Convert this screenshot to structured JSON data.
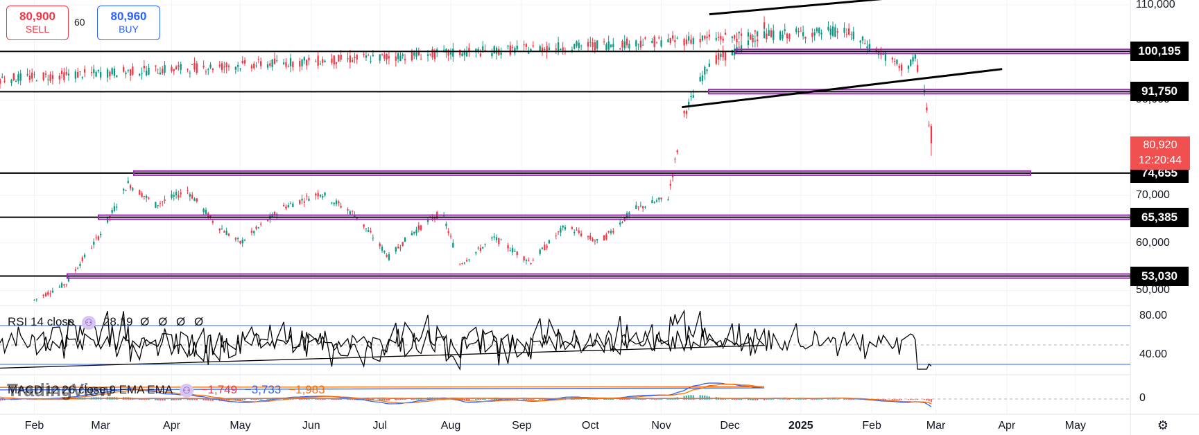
{
  "trade": {
    "sell_price": "80,900",
    "sell_label": "SELL",
    "qty": "60",
    "buy_price": "80,960",
    "buy_label": "BUY"
  },
  "price_axis_ticks": [
    {
      "label": "110,000",
      "value": 110000
    },
    {
      "label": "90,000",
      "value": 90000
    },
    {
      "label": "70,000",
      "value": 70000
    },
    {
      "label": "60,000",
      "value": 60000
    },
    {
      "label": "50,000",
      "value": 50000
    }
  ],
  "level_labels": [
    {
      "label": "100,195",
      "value": 100195
    },
    {
      "label": "91,750",
      "value": 91750
    },
    {
      "label": "74,655",
      "value": 74655
    },
    {
      "label": "65,385",
      "value": 65385
    },
    {
      "label": "53,030",
      "value": 53030
    }
  ],
  "current_price": {
    "price": "80,920",
    "countdown": "12:20:44",
    "color": "#f0504f"
  },
  "rsi": {
    "label": "RSI 14 close",
    "value": "28.19",
    "extras": "Ø Ø Ø Ø",
    "ticks": [
      {
        "label": "80.00",
        "value": 80
      },
      {
        "label": "40.00",
        "value": 40
      }
    ],
    "bands": [
      70,
      30
    ]
  },
  "macd": {
    "label": "MACD 12 26 close 9 EMA EMA",
    "v1": "−1,749",
    "v2": "−3,733",
    "v3": "−1,983",
    "tick": "0"
  },
  "months": [
    "Feb",
    "Mar",
    "Apr",
    "May",
    "Jun",
    "Jul",
    "Aug",
    "Sep",
    "Oct",
    "Nov",
    "Dec",
    "2025",
    "Feb",
    "Mar",
    "Apr",
    "May"
  ],
  "watermark": "TradingView",
  "colors": {
    "up": "#089981",
    "down": "#f23645",
    "level": "#9c27b0",
    "sell": "#f23645",
    "buy": "#2962ff",
    "macd": "#2962ff",
    "signal": "#ff6d00"
  },
  "chart_data": {
    "type": "candlestick",
    "ylim": [
      47000,
      111000
    ],
    "horizontal_levels": [
      100195,
      91750,
      74655,
      65385,
      53030
    ],
    "trend_channel": [
      {
        "from": [
          "Nov 22",
          108000
        ],
        "to": [
          "Feb 24",
          112000
        ]
      },
      {
        "from": [
          "Nov 10",
          88500
        ],
        "to": [
          "Mar 30",
          96500
        ]
      }
    ],
    "close_path": [
      [
        "Feb 01",
        48000
      ],
      [
        "Feb 15",
        51500
      ],
      [
        "Mar 01",
        62000
      ],
      [
        "Mar 13",
        72500
      ],
      [
        "Mar 25",
        68000
      ],
      [
        "Apr 08",
        71000
      ],
      [
        "Apr 20",
        64000
      ],
      [
        "May 01",
        60000
      ],
      [
        "May 20",
        67500
      ],
      [
        "Jun 05",
        70500
      ],
      [
        "Jun 20",
        66000
      ],
      [
        "Jul 05",
        57000
      ],
      [
        "Jul 15",
        62000
      ],
      [
        "Jul 28",
        66500
      ],
      [
        "Aug 05",
        55500
      ],
      [
        "Aug 20",
        61000
      ],
      [
        "Sep 05",
        56000
      ],
      [
        "Sep 20",
        63500
      ],
      [
        "Oct 05",
        60000
      ],
      [
        "Oct 20",
        67000
      ],
      [
        "Nov 04",
        69500
      ],
      [
        "Nov 11",
        87000
      ],
      [
        "Nov 22",
        98000
      ],
      [
        "Dec 05",
        100500
      ],
      [
        "Dec 17",
        106000
      ],
      [
        "Jan 01",
        94000
      ],
      [
        "Jan 20",
        104500
      ],
      [
        "Feb 01",
        101000
      ],
      [
        "Feb 15",
        96500
      ],
      [
        "Feb 20",
        98500
      ],
      [
        "Feb 24",
        92000
      ],
      [
        "Feb 27",
        80920
      ]
    ]
  }
}
